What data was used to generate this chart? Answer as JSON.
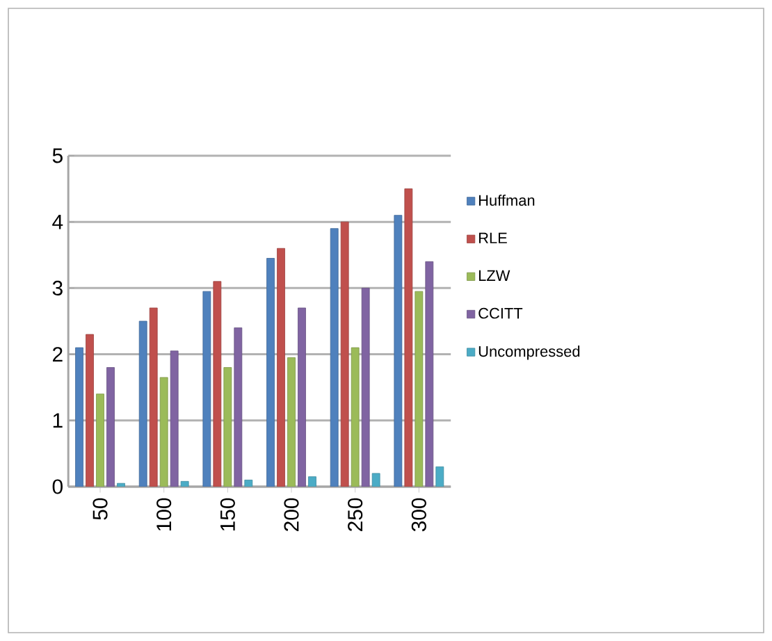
{
  "chart_data": {
    "type": "bar",
    "categories": [
      "50",
      "100",
      "150",
      "200",
      "250",
      "300"
    ],
    "series": [
      {
        "name": "Huffman",
        "color": "#4f81bd",
        "values": [
          2.1,
          2.5,
          2.95,
          3.45,
          3.9,
          4.1
        ]
      },
      {
        "name": "RLE",
        "color": "#c0504d",
        "values": [
          2.3,
          2.7,
          3.1,
          3.6,
          4.0,
          4.5
        ]
      },
      {
        "name": "LZW",
        "color": "#9bbb59",
        "values": [
          1.4,
          1.65,
          1.8,
          1.95,
          2.1,
          2.95
        ]
      },
      {
        "name": "CCITT",
        "color": "#8064a2",
        "values": [
          1.8,
          2.05,
          2.4,
          2.7,
          3.0,
          3.4
        ]
      },
      {
        "name": "Uncompressed",
        "color": "#4bacc6",
        "values": [
          0.05,
          0.08,
          0.1,
          0.15,
          0.2,
          0.3
        ]
      }
    ],
    "ylim": [
      0,
      5
    ],
    "yticks": [
      0,
      1,
      2,
      3,
      4,
      5
    ],
    "grid": "y",
    "legend": "right"
  }
}
